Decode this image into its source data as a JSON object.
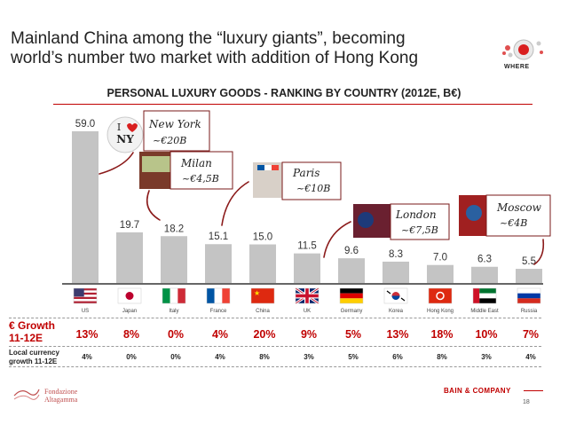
{
  "header": {
    "title_line1": "Mainland China among the “luxury giants”, becoming",
    "title_line2": "world’s number two market with addition of Hong Kong",
    "logo_text": "WHERE"
  },
  "chart_data": {
    "type": "bar",
    "title": "PERSONAL LUXURY GOODS - RANKING BY COUNTRY (2012E, B€)",
    "categories": [
      "US",
      "Japan",
      "Italy",
      "France",
      "China",
      "UK",
      "Germany",
      "Korea",
      "Hong Kong",
      "Middle East",
      "Russia"
    ],
    "values": [
      59.0,
      19.7,
      18.2,
      15.1,
      15.0,
      11.5,
      9.6,
      8.3,
      7.0,
      6.3,
      5.5
    ],
    "value_labels": [
      "59.0",
      "19.7",
      "18.2",
      "15.1",
      "15.0",
      "11.5",
      "9.6",
      "8.3",
      "7.0",
      "6.3",
      "5.5"
    ],
    "bar_color": "#c4c4c4",
    "ylim": [
      0,
      62
    ],
    "growth_label": "€ Growth 11-12E",
    "growth": [
      "13%",
      "8%",
      "0%",
      "4%",
      "20%",
      "9%",
      "5%",
      "13%",
      "18%",
      "10%",
      "7%"
    ],
    "local_growth_label": "Local currency growth 11-12E",
    "local_growth": [
      "4%",
      "0%",
      "0%",
      "4%",
      "8%",
      "3%",
      "5%",
      "6%",
      "8%",
      "3%",
      "4%"
    ],
    "callouts": [
      {
        "city": "New York",
        "value": "~€20B"
      },
      {
        "city": "Milan",
        "value": "~€4,5B"
      },
      {
        "city": "Paris",
        "value": "~€10B"
      },
      {
        "city": "London",
        "value": "~€7,5B"
      },
      {
        "city": "Moscow",
        "value": "~€4B"
      }
    ],
    "ny_badge": [
      "I",
      "NY"
    ]
  },
  "footer": {
    "foundation_line1": "Fondazione",
    "foundation_line2": "Altagamma",
    "bain": "BAIN & COMPANY",
    "page": "18"
  },
  "colors": {
    "accent": "#c00000",
    "growth": "#c00000"
  }
}
